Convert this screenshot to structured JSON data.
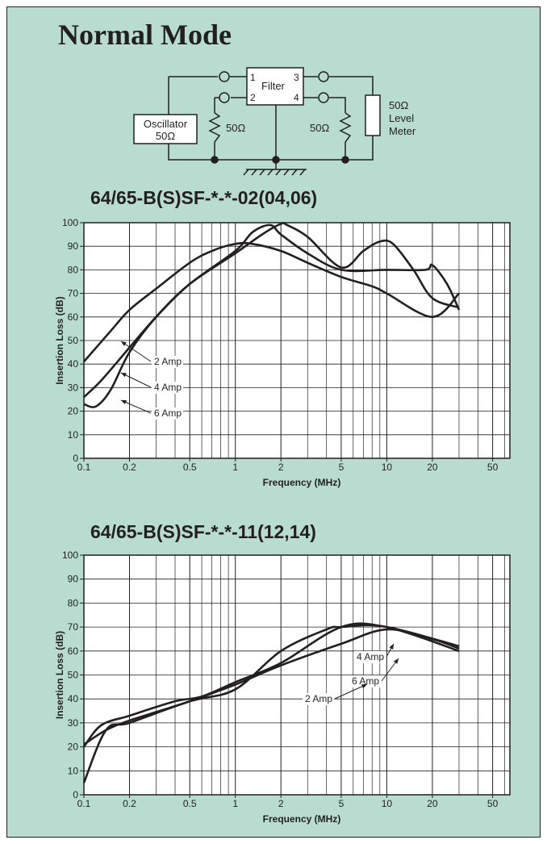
{
  "title": "Normal Mode",
  "circuit": {
    "filter_label": "Filter",
    "pin1": "1",
    "pin2": "2",
    "pin3": "3",
    "pin4": "4",
    "oscillator_line1": "Oscillator",
    "oscillator_line2": "50Ω",
    "r_left": "50Ω",
    "r_right": "50Ω",
    "meter_line1": "50Ω",
    "meter_line2": "Level",
    "meter_line3": "Meter"
  },
  "chart_data": [
    {
      "type": "line",
      "title": "64/65-B(S)SF-*-*-02(04,06)",
      "xlabel": "Frequency (MHz)",
      "ylabel": "Insertion Loss (dB)",
      "x_scale": "log",
      "xlim": [
        0.1,
        65
      ],
      "ylim": [
        0,
        100
      ],
      "x_ticks": [
        "0.1",
        "0.2",
        "0.5",
        "1",
        "2",
        "5",
        "10",
        "20",
        "50"
      ],
      "y_ticks": [
        "0",
        "10",
        "20",
        "30",
        "40",
        "50",
        "60",
        "70",
        "80",
        "90",
        "100"
      ],
      "grid": true,
      "series": [
        {
          "name": "2 Amp",
          "x": [
            0.1,
            0.15,
            0.2,
            0.3,
            0.5,
            0.7,
            1,
            1.3,
            2,
            3,
            5,
            8,
            10,
            20,
            30
          ],
          "y": [
            41,
            54,
            63,
            72,
            83,
            88,
            91,
            91,
            88,
            83,
            77,
            73,
            70,
            60,
            70
          ]
        },
        {
          "name": "4 Amp",
          "x": [
            0.1,
            0.13,
            0.2,
            0.3,
            0.5,
            1,
            1.3,
            1.7,
            2,
            3,
            5,
            10,
            18,
            20,
            25,
            30
          ],
          "y": [
            26,
            33,
            47,
            60,
            74,
            88,
            96,
            99,
            95,
            87,
            80,
            80,
            80,
            82,
            74,
            63
          ]
        },
        {
          "name": "6 Amp",
          "x": [
            0.1,
            0.12,
            0.15,
            0.2,
            0.3,
            0.5,
            1,
            1.5,
            2,
            2.2,
            3,
            5,
            7,
            9,
            11,
            15,
            20,
            30
          ],
          "y": [
            23,
            22,
            29,
            45,
            60,
            74,
            87,
            95,
            99.5,
            99,
            94,
            81,
            88,
            92,
            91,
            80,
            68,
            64
          ]
        }
      ],
      "annotations": [
        "2 Amp",
        "4 Amp",
        "6 Amp"
      ]
    },
    {
      "type": "line",
      "title": "64/65-B(S)SF-*-*-11(12,14)",
      "xlabel": "Frequency (MHz)",
      "ylabel": "Insertion Loss (dB)",
      "x_scale": "log",
      "xlim": [
        0.1,
        65
      ],
      "ylim": [
        0,
        100
      ],
      "x_ticks": [
        "0.1",
        "0.2",
        "0.5",
        "1",
        "2",
        "5",
        "10",
        "20",
        "50"
      ],
      "y_ticks": [
        "0",
        "10",
        "20",
        "30",
        "40",
        "50",
        "60",
        "70",
        "80",
        "90",
        "100"
      ],
      "grid": true,
      "series": [
        {
          "name": "2 Amp",
          "x": [
            0.1,
            0.14,
            0.2,
            0.4,
            0.5,
            1,
            2,
            5,
            10,
            20,
            30
          ],
          "y": [
            21,
            27,
            31,
            37,
            39,
            46,
            54,
            63,
            69,
            65,
            61
          ]
        },
        {
          "name": "4 Amp",
          "x": [
            0.1,
            0.14,
            0.2,
            0.5,
            1,
            2,
            4,
            5,
            10,
            30
          ],
          "y": [
            5,
            27,
            30,
            39,
            44,
            60,
            69,
            70,
            70,
            60
          ]
        },
        {
          "name": "6 Amp",
          "x": [
            0.1,
            0.13,
            0.2,
            0.4,
            0.6,
            1,
            2,
            5,
            10,
            30
          ],
          "y": [
            20,
            29,
            33,
            39,
            41,
            47,
            55,
            70,
            70,
            62
          ]
        }
      ],
      "annotations": [
        "4 Amp",
        "6 Amp",
        "2 Amp"
      ]
    }
  ]
}
